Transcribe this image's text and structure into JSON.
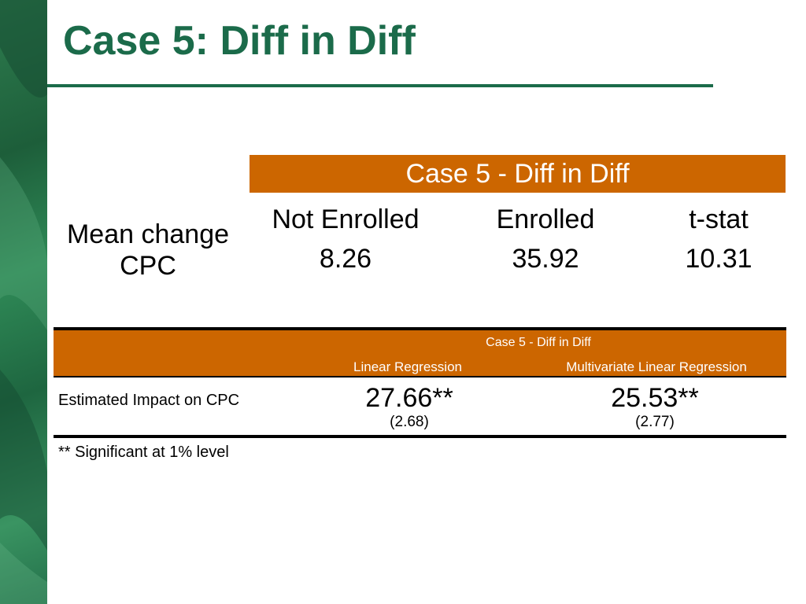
{
  "slide": {
    "title": "Case 5: Diff in Diff",
    "accent_color": "#cc6600",
    "title_color": "#1b6b4a"
  },
  "table1": {
    "header": "Case 5 - Diff in Diff",
    "row_label_line1": "Mean change",
    "row_label_line2": "CPC",
    "columns": [
      {
        "label": "Not Enrolled",
        "value": "8.26"
      },
      {
        "label": "Enrolled",
        "value": "35.92"
      },
      {
        "label": "t-stat",
        "value": "10.31"
      }
    ]
  },
  "table2": {
    "header": "Case 5 - Diff in Diff",
    "columns": [
      {
        "label": "Linear Regression",
        "estimate": "27.66**",
        "se": "(2.68)"
      },
      {
        "label": "Multivariate Linear Regression",
        "estimate": "25.53**",
        "se": "(2.77)"
      }
    ],
    "row_label": "Estimated Impact on CPC",
    "note": "** Significant at 1% level"
  }
}
